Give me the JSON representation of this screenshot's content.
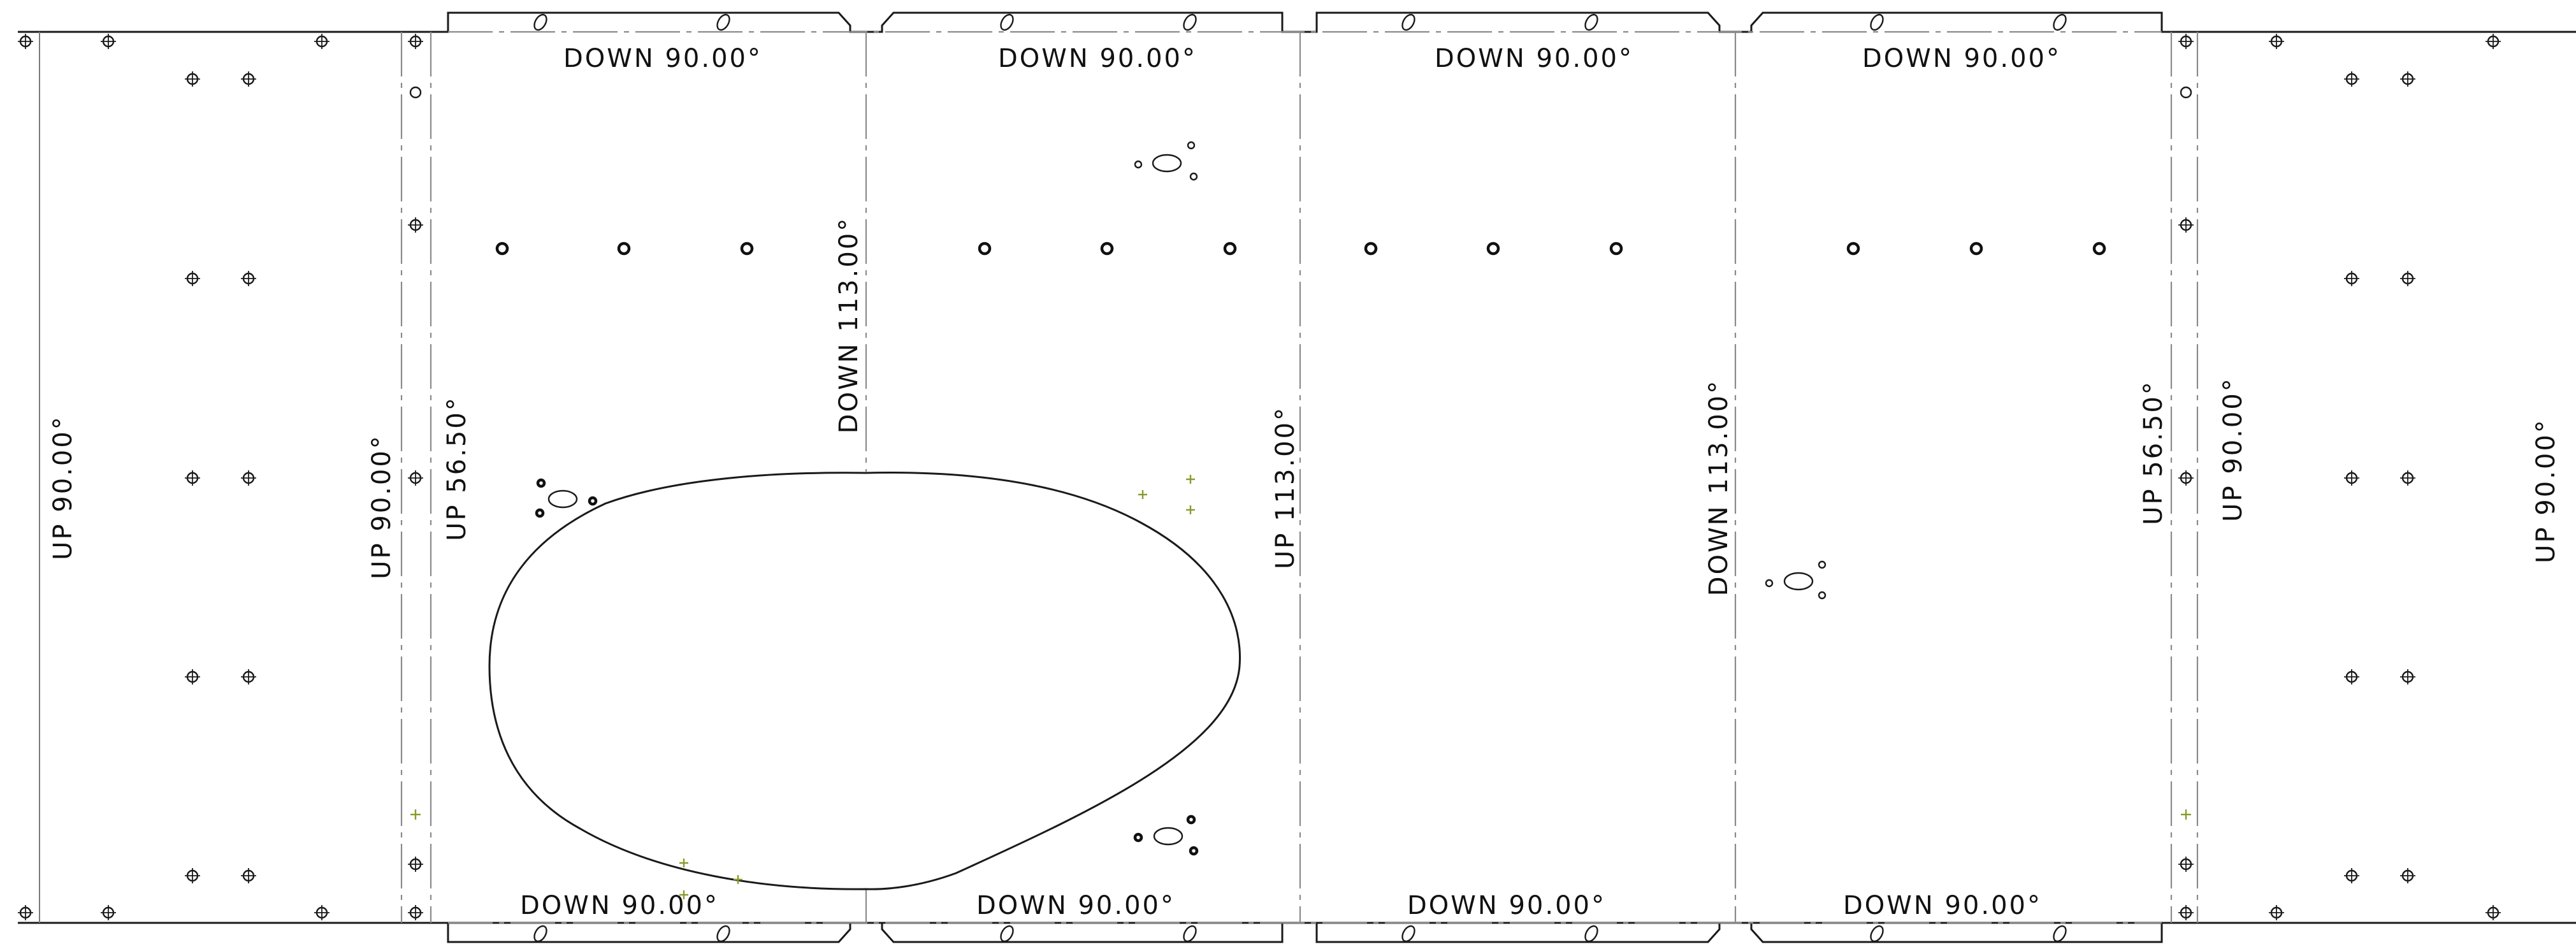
{
  "drawing": {
    "type": "sheet-metal flat pattern",
    "colors": {
      "outline": "#1a1a1a",
      "bend_line": "#8a8a8a",
      "reference_mark": "#8a9a2a"
    }
  },
  "bend_labels": {
    "top": [
      "DOWN  90.00°",
      "DOWN  90.00°",
      "DOWN  90.00°",
      "DOWN  90.00°"
    ],
    "bottom": [
      "DOWN  90.00°",
      "DOWN  90.00°",
      "DOWN  90.00°",
      "DOWN  90.00°"
    ],
    "vertical": [
      "UP  90.00°",
      "UP  90.00°",
      "UP  56.50°",
      "DOWN  113.00°",
      "UP  113.00°",
      "DOWN  113.00°",
      "UP  56.50°",
      "UP  90.00°",
      "UP  90.00°"
    ]
  }
}
